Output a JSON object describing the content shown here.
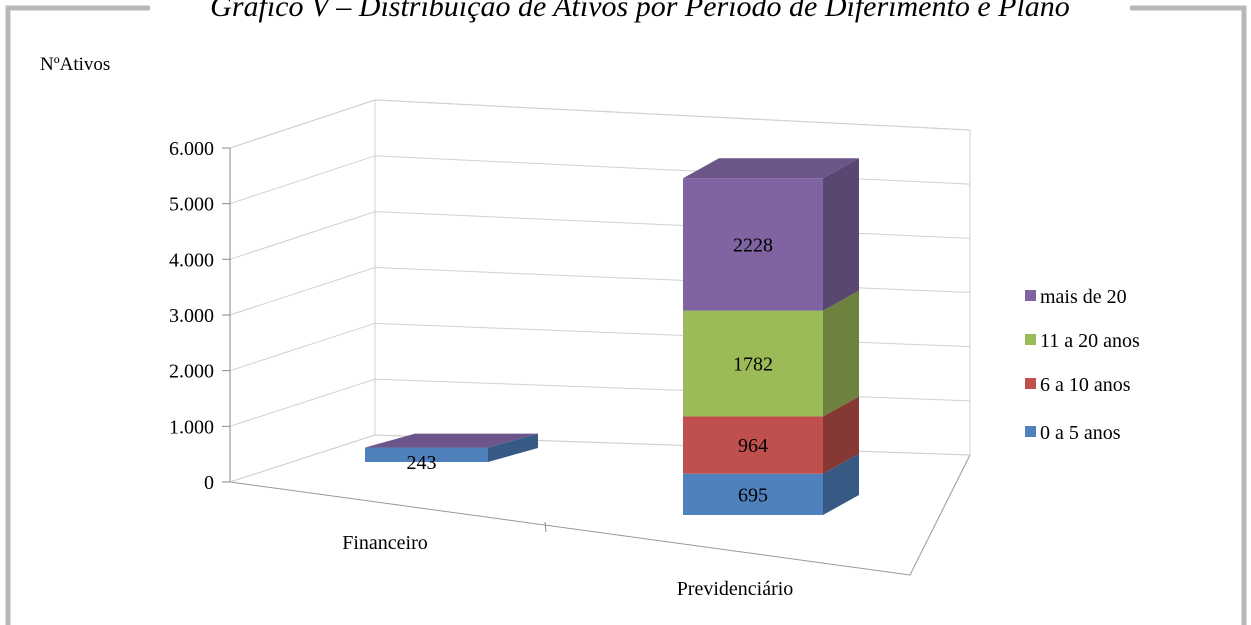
{
  "chart_data": {
    "type": "bar3d_stacked",
    "title": "Gráfico V – Distribuição de Ativos por Período de Diferimento e Plano",
    "y_label": "NºAtivos",
    "categories": [
      "Financeiro",
      "Previdenciário"
    ],
    "series": [
      {
        "name": "0 a 5 anos",
        "color": "#4f81bd",
        "values": [
          243,
          695
        ]
      },
      {
        "name": "6 a 10 anos",
        "color": "#c0504d",
        "values": [
          0,
          964
        ]
      },
      {
        "name": "11 a 20 anos",
        "color": "#9bbb59",
        "values": [
          0,
          1782
        ]
      },
      {
        "name": "mais de 20",
        "color": "#8064a2",
        "values": [
          0,
          2228
        ]
      }
    ],
    "ylim": [
      0,
      6000
    ],
    "yticks": [
      {
        "value": 0,
        "label": "0"
      },
      {
        "value": 1000,
        "label": "1.000"
      },
      {
        "value": 2000,
        "label": "2.000"
      },
      {
        "value": 3000,
        "label": "3.000"
      },
      {
        "value": 4000,
        "label": "4.000"
      },
      {
        "value": 5000,
        "label": "5.000"
      },
      {
        "value": 6000,
        "label": "6.000"
      }
    ],
    "grid": true,
    "legend": "right"
  }
}
